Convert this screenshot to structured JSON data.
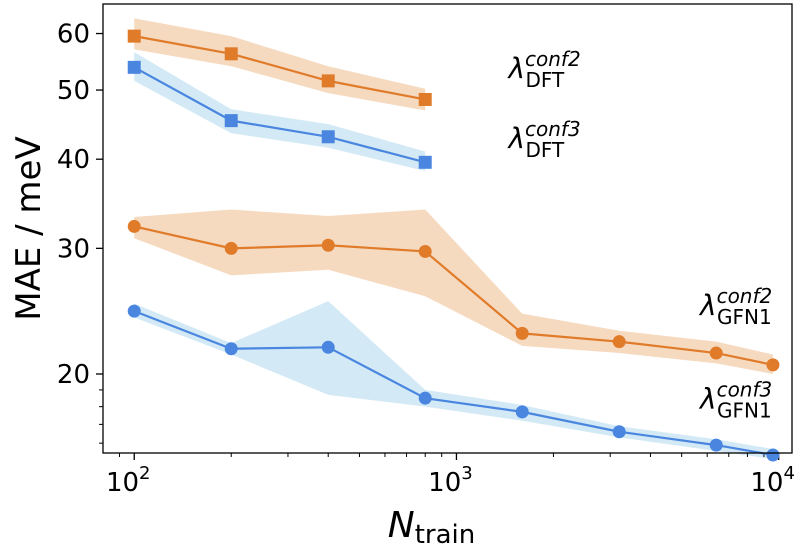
{
  "chart_data": {
    "type": "line",
    "x_scale": "log",
    "y_scale": "log",
    "xlim": [
      80,
      11000
    ],
    "ylim": [
      15.5,
      66
    ],
    "xlabel": {
      "main": "N",
      "sub": "train"
    },
    "ylabel": "MAE / meV",
    "x_ticks": [
      {
        "value": 100,
        "base": "10",
        "exp": "2"
      },
      {
        "value": 1000,
        "base": "10",
        "exp": "3"
      },
      {
        "value": 10000,
        "base": "10",
        "exp": "4"
      }
    ],
    "y_ticks": [
      {
        "value": 20,
        "label": "20"
      },
      {
        "value": 30,
        "label": "30"
      },
      {
        "value": 40,
        "label": "40"
      },
      {
        "value": 50,
        "label": "50"
      },
      {
        "value": 60,
        "label": "60"
      }
    ],
    "series": [
      {
        "label_symbol": "λ",
        "label_sub": "DFT",
        "label_sup": "conf2",
        "color": "#e07b2a",
        "band_color": "#f5d3b5",
        "marker": "square",
        "label_at": {
          "x": 1450,
          "y": 52
        },
        "x": [
          100,
          200,
          400,
          800
        ],
        "y": [
          59.5,
          56.2,
          51.5,
          48.5
        ],
        "lower": [
          57.0,
          54.0,
          49.5,
          46.8
        ],
        "upper": [
          63.0,
          59.5,
          54.0,
          50.2
        ]
      },
      {
        "label_symbol": "λ",
        "label_sub": "DFT",
        "label_sup": "conf3",
        "color": "#4a86e0",
        "band_color": "#cbe6f5",
        "marker": "square",
        "label_at": {
          "x": 1450,
          "y": 41.5
        },
        "x": [
          100,
          200,
          400,
          800
        ],
        "y": [
          53.8,
          45.3,
          43.0,
          39.6
        ],
        "lower": [
          51.5,
          43.5,
          41.5,
          38.5
        ],
        "upper": [
          56.5,
          47.0,
          44.8,
          41.0
        ]
      },
      {
        "label_symbol": "λ",
        "label_sub": "GFN1",
        "label_sup": "conf2",
        "color": "#e07b2a",
        "band_color": "#f5d3b5",
        "marker": "circle",
        "label_at": {
          "x": 5700,
          "y": 24.2
        },
        "x": [
          100,
          200,
          400,
          800,
          1600,
          3200,
          6400,
          9600
        ],
        "y": [
          32.2,
          30.0,
          30.3,
          29.7,
          22.8,
          22.2,
          21.4,
          20.6
        ],
        "lower": [
          31.0,
          27.5,
          28.0,
          25.7,
          21.9,
          21.4,
          20.7,
          20.0
        ],
        "upper": [
          33.2,
          34.0,
          33.3,
          34.0,
          24.3,
          23.0,
          22.2,
          21.3
        ]
      },
      {
        "label_symbol": "λ",
        "label_sub": "GFN1",
        "label_sup": "conf3",
        "color": "#4a86e0",
        "band_color": "#cbe6f5",
        "marker": "circle",
        "label_at": {
          "x": 5700,
          "y": 17.9
        },
        "x": [
          100,
          200,
          400,
          800,
          1600,
          3200,
          6400,
          9600
        ],
        "y": [
          24.5,
          21.7,
          21.8,
          18.5,
          17.7,
          16.6,
          15.9,
          15.4
        ],
        "lower": [
          24.0,
          21.3,
          18.7,
          18.0,
          17.2,
          16.3,
          15.6,
          15.2
        ],
        "upper": [
          25.1,
          22.1,
          25.3,
          19.0,
          18.1,
          16.9,
          16.2,
          15.7
        ]
      }
    ]
  }
}
